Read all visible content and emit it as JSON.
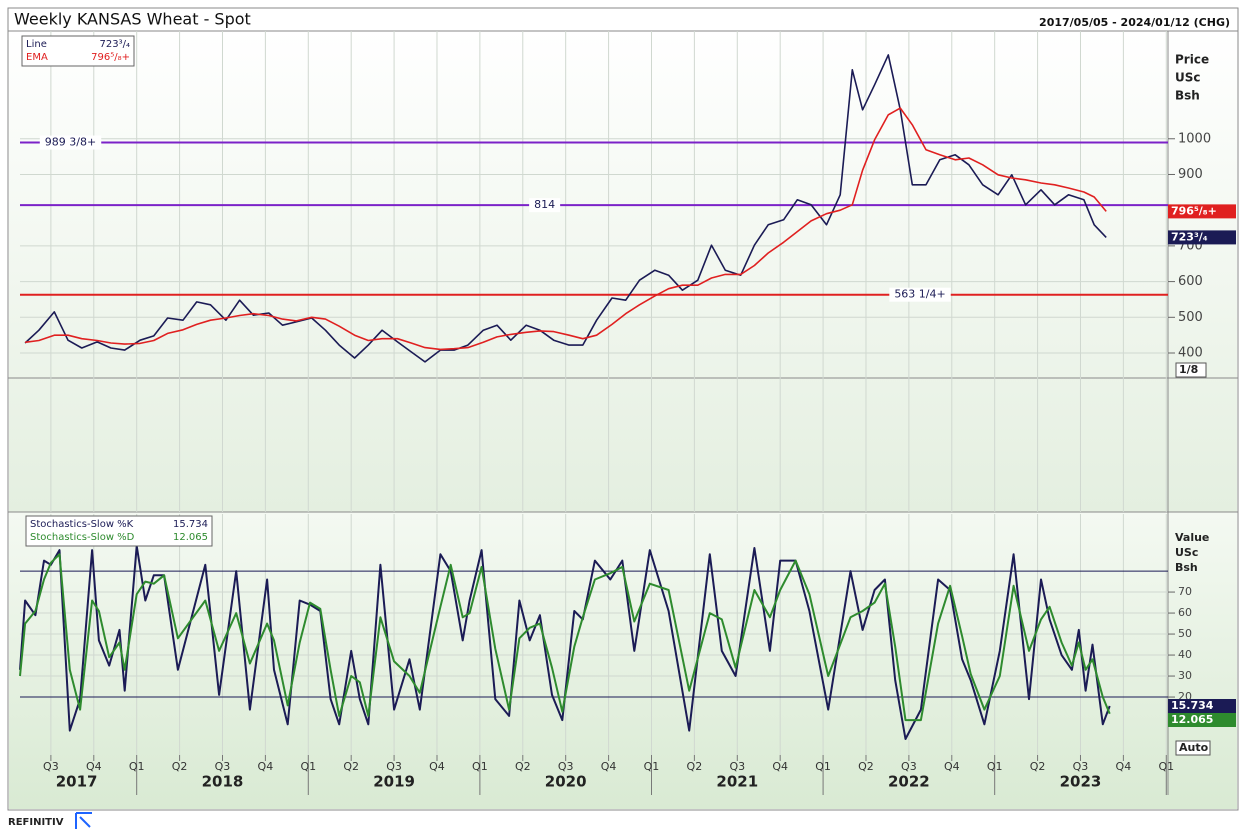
{
  "header": {
    "title": "Weekly KANSAS Wheat - Spot",
    "range": "2017/05/05 - 2024/01/12 (CHG)"
  },
  "chart_data": [
    {
      "type": "line",
      "axis_label": [
        "Price",
        "USc",
        "Bsh"
      ],
      "scale_box": "1/8",
      "xlim": [
        2017.32,
        2024.01
      ],
      "ylim": [
        330,
        1299
      ],
      "yticks": [
        400,
        500,
        600,
        700,
        900,
        1000
      ],
      "grid": true,
      "x": [
        2017.35,
        2017.43,
        2017.52,
        2017.6,
        2017.68,
        2017.77,
        2017.85,
        2017.93,
        2018.02,
        2018.1,
        2018.18,
        2018.27,
        2018.35,
        2018.43,
        2018.52,
        2018.6,
        2018.68,
        2018.77,
        2018.85,
        2018.93,
        2019.02,
        2019.1,
        2019.18,
        2019.27,
        2019.35,
        2019.43,
        2019.52,
        2019.6,
        2019.68,
        2019.77,
        2019.85,
        2019.93,
        2020.02,
        2020.1,
        2020.18,
        2020.27,
        2020.35,
        2020.43,
        2020.52,
        2020.6,
        2020.68,
        2020.77,
        2020.85,
        2020.93,
        2021.02,
        2021.1,
        2021.18,
        2021.27,
        2021.35,
        2021.43,
        2021.52,
        2021.6,
        2021.68,
        2021.77,
        2021.85,
        2021.93,
        2022.02,
        2022.1,
        2022.17,
        2022.23,
        2022.3,
        2022.38,
        2022.45,
        2022.52,
        2022.6,
        2022.68,
        2022.77,
        2022.85,
        2022.93,
        2023.02,
        2023.1,
        2023.18,
        2023.27,
        2023.35,
        2023.43,
        2023.52,
        2023.58,
        2023.65
      ],
      "series": [
        {
          "name": "Line",
          "color": "#1b1b55",
          "last_label": "723³/₄",
          "values": [
            428,
            464,
            515,
            436,
            414,
            431,
            414,
            408,
            436,
            448,
            498,
            492,
            543,
            535,
            492,
            548,
            506,
            512,
            478,
            487,
            498,
            464,
            422,
            386,
            422,
            464,
            431,
            403,
            375,
            408,
            408,
            422,
            464,
            478,
            436,
            478,
            464,
            436,
            422,
            422,
            492,
            554,
            548,
            604,
            632,
            618,
            576,
            604,
            702,
            632,
            618,
            702,
            759,
            773,
            829,
            815,
            759,
            843,
            1193,
            1081,
            1151,
            1235,
            1081,
            871,
            871,
            941,
            955,
            927,
            871,
            843,
            899,
            815,
            857,
            815,
            843,
            829,
            759,
            723.75
          ]
        },
        {
          "name": "EMA",
          "color": "#e02020",
          "last_label": "796⁵/₈+",
          "values": [
            430,
            435,
            450,
            450,
            440,
            435,
            428,
            425,
            427,
            435,
            455,
            465,
            480,
            492,
            498,
            505,
            510,
            505,
            495,
            490,
            500,
            495,
            475,
            450,
            435,
            440,
            440,
            428,
            415,
            410,
            412,
            415,
            430,
            445,
            452,
            458,
            462,
            460,
            450,
            440,
            450,
            480,
            510,
            535,
            560,
            580,
            590,
            590,
            610,
            620,
            620,
            645,
            680,
            710,
            740,
            770,
            790,
            800,
            815,
            912,
            997,
            1067,
            1086,
            1039,
            969,
            955,
            941,
            946,
            927,
            899,
            890,
            885,
            876,
            871,
            862,
            851,
            837,
            796.625
          ]
        }
      ],
      "levels": [
        {
          "value": 989.375,
          "label": "989 3/8+",
          "color": "#7b22c8"
        },
        {
          "value": 814,
          "label": "814",
          "color": "#7b22c8"
        },
        {
          "value": 563.25,
          "label": "563 1/4+",
          "color": "#e02020"
        }
      ]
    },
    {
      "type": "line",
      "axis_label": [
        "Value",
        "USc",
        "Bsh"
      ],
      "scale_box": "Auto",
      "xlim": [
        2017.32,
        2024.01
      ],
      "ylim": [
        -7.6,
        106.7
      ],
      "yticks": [
        20,
        30,
        40,
        50,
        60,
        70
      ],
      "grid": true,
      "levels": [
        80,
        20
      ],
      "level_color": "#1b1b55",
      "xticks": [
        {
          "value": 2017.5,
          "label": "Q3"
        },
        {
          "value": 2017.75,
          "label": "Q4"
        },
        {
          "value": 2018,
          "label": "Q1"
        },
        {
          "value": 2018.25,
          "label": "Q2"
        },
        {
          "value": 2018.5,
          "label": "Q3"
        },
        {
          "value": 2018.75,
          "label": "Q4"
        },
        {
          "value": 2019,
          "label": "Q1"
        },
        {
          "value": 2019.25,
          "label": "Q2"
        },
        {
          "value": 2019.5,
          "label": "Q3"
        },
        {
          "value": 2019.75,
          "label": "Q4"
        },
        {
          "value": 2020,
          "label": "Q1"
        },
        {
          "value": 2020.25,
          "label": "Q2"
        },
        {
          "value": 2020.5,
          "label": "Q3"
        },
        {
          "value": 2020.75,
          "label": "Q4"
        },
        {
          "value": 2021,
          "label": "Q1"
        },
        {
          "value": 2021.25,
          "label": "Q2"
        },
        {
          "value": 2021.5,
          "label": "Q3"
        },
        {
          "value": 2021.75,
          "label": "Q4"
        },
        {
          "value": 2022,
          "label": "Q1"
        },
        {
          "value": 2022.25,
          "label": "Q2"
        },
        {
          "value": 2022.5,
          "label": "Q3"
        },
        {
          "value": 2022.75,
          "label": "Q4"
        },
        {
          "value": 2023,
          "label": "Q1"
        },
        {
          "value": 2023.25,
          "label": "Q2"
        },
        {
          "value": 2023.5,
          "label": "Q3"
        },
        {
          "value": 2023.75,
          "label": "Q4"
        },
        {
          "value": 2024,
          "label": "Q1"
        }
      ],
      "year_labels": [
        {
          "value": 2017.65,
          "label": "2017"
        },
        {
          "value": 2018.5,
          "label": "2018"
        },
        {
          "value": 2019.5,
          "label": "2019"
        },
        {
          "value": 2020.5,
          "label": "2020"
        },
        {
          "value": 2021.5,
          "label": "2021"
        },
        {
          "value": 2022.5,
          "label": "2022"
        },
        {
          "value": 2023.5,
          "label": "2023"
        }
      ],
      "x": [
        2017.32,
        2017.35,
        2017.41,
        2017.46,
        2017.5,
        2017.55,
        2017.61,
        2017.67,
        2017.74,
        2017.78,
        2017.84,
        2017.9,
        2017.93,
        2018,
        2018.05,
        2018.1,
        2018.16,
        2018.24,
        2018.4,
        2018.48,
        2018.58,
        2018.66,
        2018.76,
        2018.8,
        2018.88,
        2018.95,
        2019.01,
        2019.07,
        2019.13,
        2019.18,
        2019.25,
        2019.3,
        2019.35,
        2019.42,
        2019.5,
        2019.59,
        2019.65,
        2019.77,
        2019.83,
        2019.9,
        2019.94,
        2020.01,
        2020.09,
        2020.17,
        2020.23,
        2020.29,
        2020.35,
        2020.42,
        2020.48,
        2020.55,
        2020.6,
        2020.67,
        2020.76,
        2020.83,
        2020.9,
        2020.99,
        2021.1,
        2021.22,
        2021.34,
        2021.41,
        2021.49,
        2021.6,
        2021.69,
        2021.75,
        2021.84,
        2021.92,
        2022.03,
        2022.16,
        2022.23,
        2022.3,
        2022.36,
        2022.42,
        2022.48,
        2022.57,
        2022.67,
        2022.74,
        2022.81,
        2022.86,
        2022.94,
        2023.03,
        2023.11,
        2023.2,
        2023.27,
        2023.32,
        2023.39,
        2023.45,
        2023.49,
        2023.53,
        2023.57,
        2023.63,
        2023.67
      ],
      "series": [
        {
          "name": "Stochastics-Slow %K",
          "color": "#1b1b55",
          "values": [
            33,
            66,
            59,
            85,
            83,
            90,
            4,
            19,
            90,
            47,
            35,
            52,
            23,
            92,
            66,
            78,
            78,
            33,
            83,
            21,
            80,
            14,
            76,
            33,
            7,
            66,
            64,
            61,
            19,
            7,
            42,
            19,
            7,
            83,
            14,
            38,
            14,
            88,
            80,
            47,
            66,
            90,
            19,
            11,
            66,
            47,
            59,
            21,
            9,
            61,
            57,
            85,
            76,
            85,
            42,
            90,
            61,
            4,
            88,
            42,
            30,
            91,
            42,
            85,
            85,
            61,
            14,
            80,
            52,
            71,
            76,
            28,
            0,
            14,
            76,
            71,
            38,
            28,
            7,
            42,
            88,
            19,
            76,
            57,
            40,
            33,
            52,
            23,
            45,
            7,
            15.734
          ]
        },
        {
          "name": "Stochastics-Slow %D",
          "color": "#2e8b2e",
          "values": [
            30,
            55,
            61,
            76,
            84,
            88,
            33,
            14,
            66,
            61,
            39,
            46,
            33,
            69,
            75,
            74,
            78,
            48,
            66,
            42,
            60,
            36,
            55,
            47,
            16,
            46,
            65,
            62,
            33,
            11,
            30,
            27,
            11,
            58,
            37,
            30,
            22,
            63,
            83,
            58,
            60,
            82,
            43,
            14,
            48,
            53,
            55,
            34,
            13,
            44,
            58,
            76,
            79,
            82,
            56,
            74,
            71,
            23,
            60,
            57,
            34,
            71,
            58,
            71,
            85,
            69,
            30,
            58,
            61,
            65,
            74,
            44,
            9,
            9,
            55,
            73,
            49,
            31,
            14,
            30,
            73,
            42,
            57,
            63,
            46,
            35,
            46,
            33,
            38,
            20,
            12.065
          ]
        }
      ]
    }
  ],
  "footer": {
    "brand": "REFINITIV"
  }
}
